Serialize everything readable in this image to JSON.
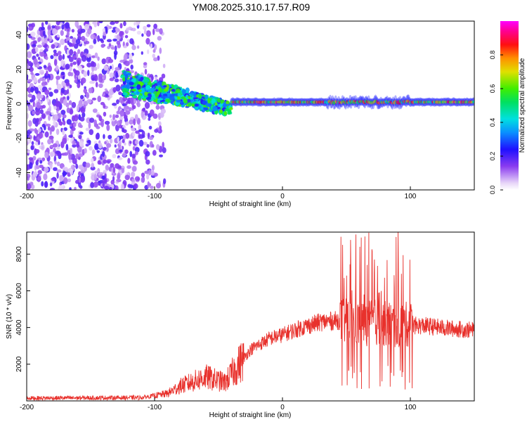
{
  "title": "YM08.2025.310.17.57.R09",
  "colors": {
    "axis": "#000000",
    "snr_line": "#e8312c",
    "background": "#ffffff"
  },
  "chart_data": [
    {
      "type": "heatmap",
      "name": "spectrogram",
      "xlabel": "Height of straight line (km)",
      "ylabel": "Frequency (Hz)",
      "xlim": [
        -200,
        150
      ],
      "ylim": [
        -50,
        48
      ],
      "xticks": [
        -200,
        -100,
        0,
        100
      ],
      "yticks": [
        -40,
        -20,
        0,
        20,
        40
      ],
      "colorbar": {
        "label": "Normalized spectral amplitude",
        "range": [
          0,
          1
        ],
        "ticks": [
          0.0,
          0.2,
          0.4,
          0.6,
          0.8
        ],
        "tick_labels": [
          "0.0",
          "0.2",
          "0.4",
          "0.6",
          "0.8"
        ]
      },
      "regions": [
        {
          "name": "broadband noise",
          "x": [
            -200,
            -90
          ],
          "freq": [
            -50,
            48
          ],
          "amplitude": 0.12
        },
        {
          "name": "turbulent band",
          "x": [
            -125,
            -40
          ],
          "freq_center_start": 12,
          "freq_center_end": -3,
          "amplitude": 0.45
        },
        {
          "name": "narrow tone",
          "x": [
            -40,
            150
          ],
          "freq": 1,
          "amplitude": 0.9
        }
      ]
    },
    {
      "type": "line",
      "name": "snr",
      "xlabel": "Height of straight line (km)",
      "ylabel": "SNR (10 * v/v)",
      "xlim": [
        -200,
        150
      ],
      "ylim": [
        0,
        9200
      ],
      "xticks": [
        -200,
        -100,
        0,
        100
      ],
      "yticks": [
        2000,
        4000,
        6000,
        8000
      ],
      "envelope": {
        "x": [
          -200,
          -110,
          -90,
          -80,
          -60,
          -45,
          -35,
          -25,
          -10,
          0,
          15,
          30,
          45,
          50,
          60,
          70,
          80,
          90,
          100,
          102,
          110,
          130,
          150
        ],
        "y": [
          150,
          180,
          400,
          800,
          1300,
          1000,
          1900,
          2800,
          3400,
          3600,
          4000,
          4300,
          4400,
          4300,
          4200,
          4300,
          4200,
          4100,
          4200,
          4100,
          4100,
          3950,
          3850
        ]
      },
      "spiky_region": {
        "x": [
          45,
          102
        ],
        "min": 500,
        "max": 9200
      }
    }
  ]
}
